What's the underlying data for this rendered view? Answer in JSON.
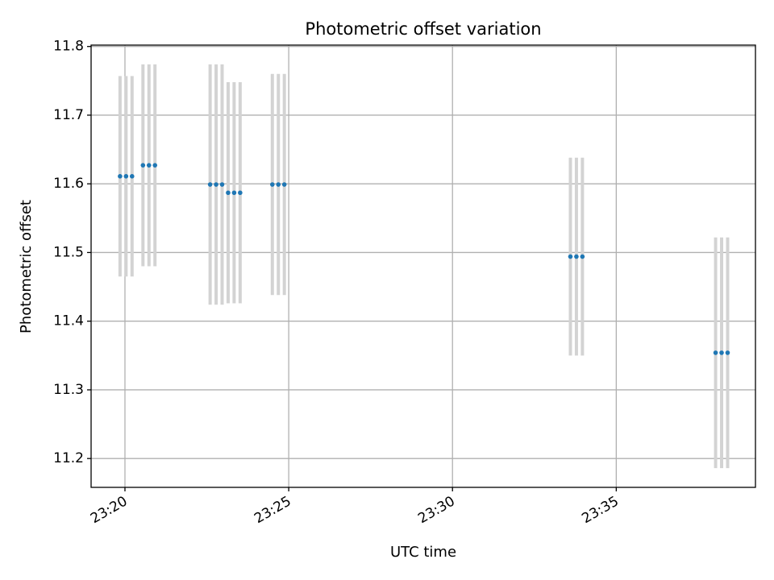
{
  "chart_data": {
    "type": "scatter",
    "title": "Photometric offset variation",
    "xlabel": "UTC time",
    "ylabel": "Photometric offset",
    "x_axis": "time",
    "xlim": [
      "23:18:58",
      "23:39:15"
    ],
    "ylim": [
      11.158,
      11.802
    ],
    "xticks": [
      "23:20",
      "23:25",
      "23:30",
      "23:35"
    ],
    "yticks": [
      "11.2",
      "11.3",
      "11.4",
      "11.5",
      "11.6",
      "11.7",
      "11.8"
    ],
    "grid": true,
    "colors": {
      "points": "#1f77b4",
      "errorbars": "#d3d3d3",
      "grid": "#b0b0b0"
    },
    "series": [
      {
        "marker": "point",
        "points": [
          {
            "x": "23:19:51",
            "y": 11.611,
            "yerr": 0.146
          },
          {
            "x": "23:20:02",
            "y": 11.611,
            "yerr": 0.146
          },
          {
            "x": "23:20:13",
            "y": 11.611,
            "yerr": 0.146
          },
          {
            "x": "23:20:33",
            "y": 11.627,
            "yerr": 0.147
          },
          {
            "x": "23:20:44",
            "y": 11.627,
            "yerr": 0.147
          },
          {
            "x": "23:20:55",
            "y": 11.627,
            "yerr": 0.147
          },
          {
            "x": "23:22:36",
            "y": 11.599,
            "yerr": 0.175
          },
          {
            "x": "23:22:47",
            "y": 11.599,
            "yerr": 0.175
          },
          {
            "x": "23:22:58",
            "y": 11.599,
            "yerr": 0.175
          },
          {
            "x": "23:23:09",
            "y": 11.587,
            "yerr": 0.161
          },
          {
            "x": "23:23:20",
            "y": 11.587,
            "yerr": 0.161
          },
          {
            "x": "23:23:31",
            "y": 11.587,
            "yerr": 0.161
          },
          {
            "x": "23:24:30",
            "y": 11.599,
            "yerr": 0.161
          },
          {
            "x": "23:24:41",
            "y": 11.599,
            "yerr": 0.161
          },
          {
            "x": "23:24:52",
            "y": 11.599,
            "yerr": 0.161
          },
          {
            "x": "23:33:36",
            "y": 11.494,
            "yerr": 0.144
          },
          {
            "x": "23:33:47",
            "y": 11.494,
            "yerr": 0.144
          },
          {
            "x": "23:33:58",
            "y": 11.494,
            "yerr": 0.144
          },
          {
            "x": "23:38:02",
            "y": 11.354,
            "yerr": 0.168
          },
          {
            "x": "23:38:13",
            "y": 11.354,
            "yerr": 0.168
          },
          {
            "x": "23:38:24",
            "y": 11.354,
            "yerr": 0.168
          }
        ]
      }
    ]
  }
}
